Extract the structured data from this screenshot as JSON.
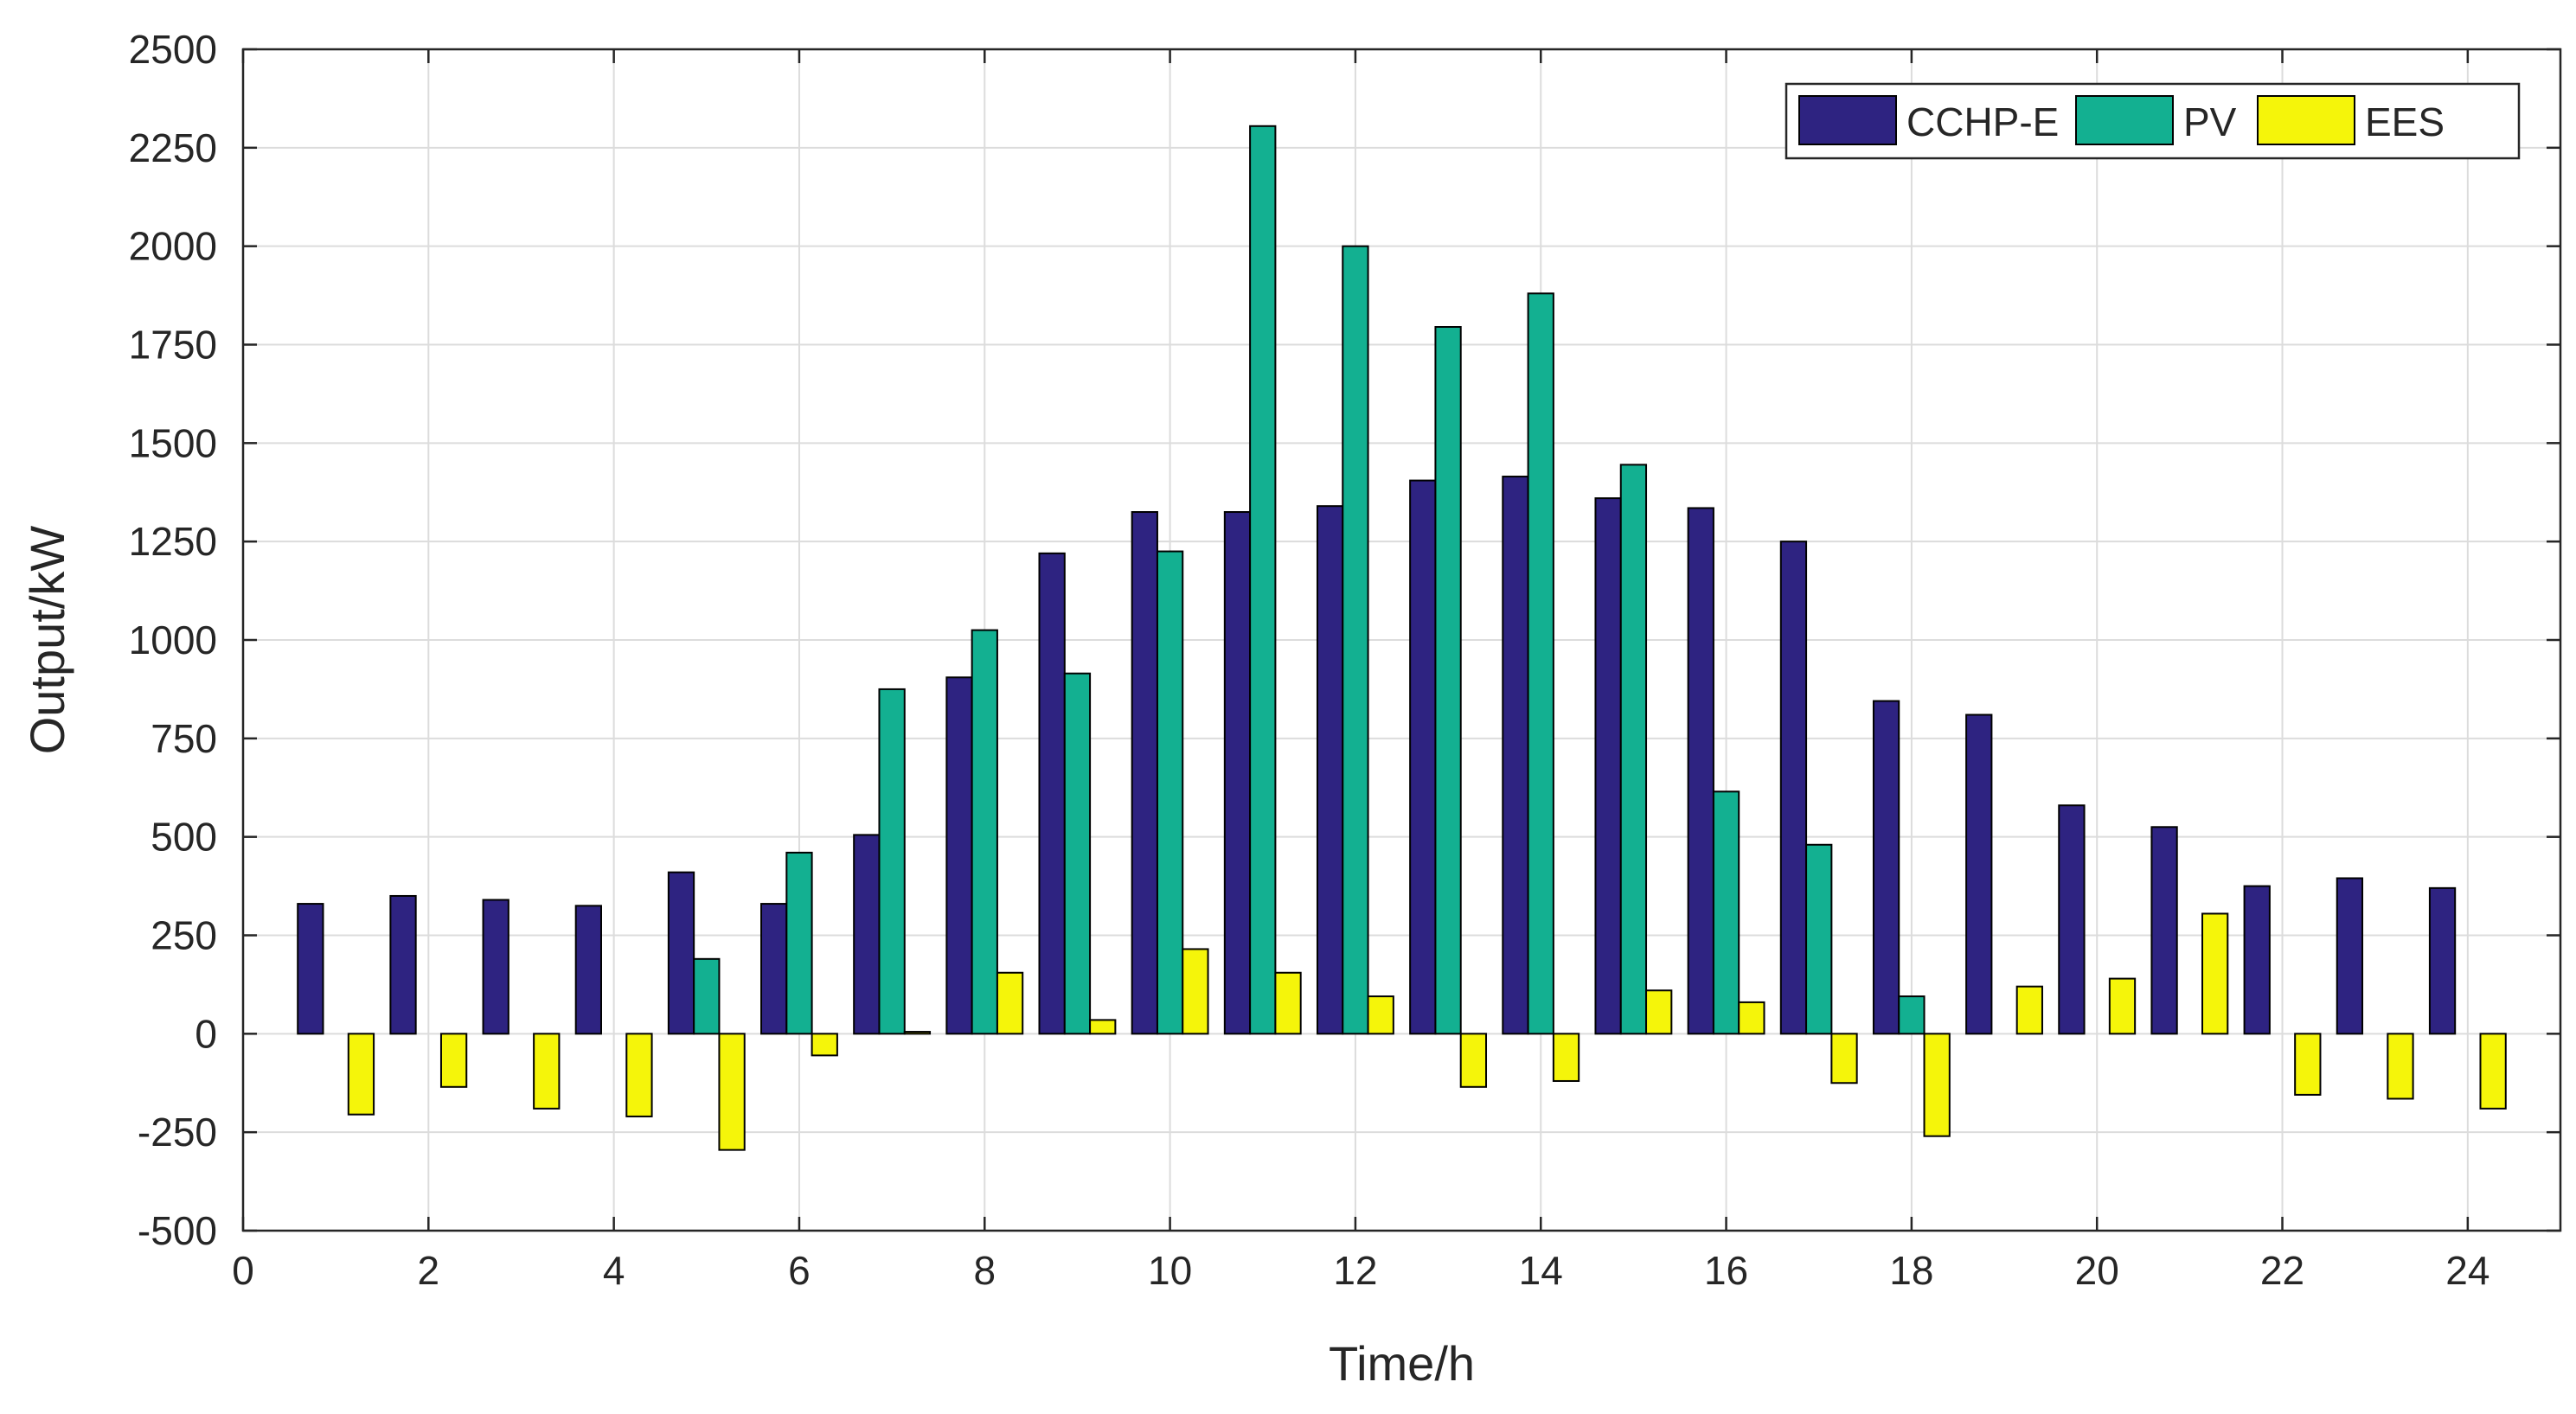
{
  "chart_data": {
    "type": "bar",
    "title": "",
    "xlabel": "Time/h",
    "ylabel": "Output/kW",
    "xlim": [
      0,
      25
    ],
    "ylim": [
      -500,
      2500
    ],
    "xticks": [
      0,
      2,
      4,
      6,
      8,
      10,
      12,
      14,
      16,
      18,
      20,
      22,
      24
    ],
    "yticks": [
      -500,
      -250,
      0,
      250,
      500,
      750,
      1000,
      1250,
      1500,
      1750,
      2000,
      2250,
      2500
    ],
    "grid": true,
    "legend_position": "top-right",
    "categories": [
      1,
      2,
      3,
      4,
      5,
      6,
      7,
      8,
      9,
      10,
      11,
      12,
      13,
      14,
      15,
      16,
      17,
      18,
      19,
      20,
      21,
      22,
      23,
      24
    ],
    "series": [
      {
        "name": "CCHP-E",
        "color": "#2e2381",
        "values": [
          330,
          350,
          340,
          325,
          410,
          330,
          505,
          905,
          1220,
          1325,
          1325,
          1340,
          1405,
          1415,
          1360,
          1335,
          1250,
          845,
          810,
          580,
          525,
          375,
          395,
          370
        ]
      },
      {
        "name": "PV",
        "color": "#13b091",
        "values": [
          0,
          0,
          0,
          0,
          190,
          460,
          875,
          1025,
          915,
          1225,
          2305,
          2000,
          1795,
          1880,
          1445,
          615,
          480,
          95,
          0,
          0,
          0,
          0,
          0,
          0
        ]
      },
      {
        "name": "EES",
        "color": "#f5f50a",
        "values": [
          -205,
          -135,
          -190,
          -210,
          -295,
          -55,
          5,
          155,
          35,
          215,
          155,
          95,
          -135,
          -120,
          110,
          80,
          -125,
          -260,
          120,
          140,
          305,
          -155,
          -165,
          -190
        ]
      }
    ]
  }
}
